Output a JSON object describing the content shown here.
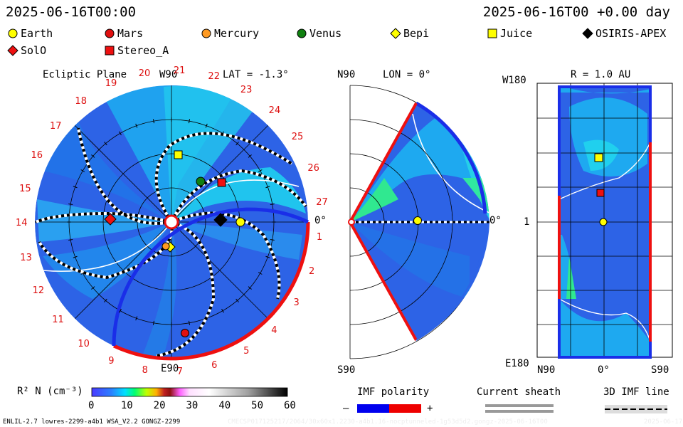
{
  "header": {
    "timestamp": "2025-06-16T00:00",
    "relative": "2025-06-16T00 +0.00 day"
  },
  "legend": [
    {
      "name": "Earth",
      "shape": "circle",
      "color": "#ffff00"
    },
    {
      "name": "Mars",
      "shape": "circle",
      "color": "#e01010"
    },
    {
      "name": "Mercury",
      "shape": "circle",
      "color": "#ff9a22"
    },
    {
      "name": "Venus",
      "shape": "circle",
      "color": "#108010"
    },
    {
      "name": "Bepi",
      "shape": "diamond",
      "color": "#ffff00"
    },
    {
      "name": "Juice",
      "shape": "square",
      "color": "#ffff00"
    },
    {
      "name": "OSIRIS-APEX",
      "shape": "diamond",
      "color": "#000000"
    },
    {
      "name": "SolO",
      "shape": "diamond",
      "color": "#ee1010"
    },
    {
      "name": "Stereo_A",
      "shape": "square",
      "color": "#ee1010"
    }
  ],
  "panel_ecliptic": {
    "title": "Ecliptic Plane",
    "lat": "LAT = -1.3°",
    "top": "W90",
    "bottom": "E90",
    "right": "0°",
    "sectors": [
      "1",
      "2",
      "3",
      "4",
      "5",
      "6",
      "7",
      "8",
      "9",
      "10",
      "11",
      "12",
      "13",
      "14",
      "15",
      "16",
      "17",
      "18",
      "19",
      "20",
      "21",
      "22",
      "23",
      "24",
      "25",
      "26",
      "27"
    ]
  },
  "panel_meridional": {
    "lon": "LON = 0°",
    "top": "N90",
    "bottom": "S90",
    "right": "0°"
  },
  "panel_map": {
    "radius": "R = 1.0 AU",
    "top_left": "W180",
    "bottom_left": "E180",
    "mid_left": "1",
    "x_labels": [
      "N90",
      "0°",
      "S90"
    ]
  },
  "colorbar": {
    "label": "R² N (cm⁻³)",
    "ticks": [
      "0",
      "10",
      "20",
      "30",
      "40",
      "50",
      "60"
    ]
  },
  "imf": {
    "label": "IMF polarity",
    "minus": "–",
    "plus": "+",
    "neg_color": "#0000ee",
    "pos_color": "#ee0000"
  },
  "sheath": {
    "label": "Current sheath"
  },
  "imf3d": {
    "label": "3D IMF line"
  },
  "footer": {
    "left": "ENLIL-2.7 lowres-2299-a4b1 WSA_V2.2 GONGZ-2299",
    "center": "CMECSP017125217/2064/30x60x1.2230-a4b1.16-nocptunneled-1g53d5d2.gongz-2025-06-16T00",
    "right": "2025-06-17"
  }
}
